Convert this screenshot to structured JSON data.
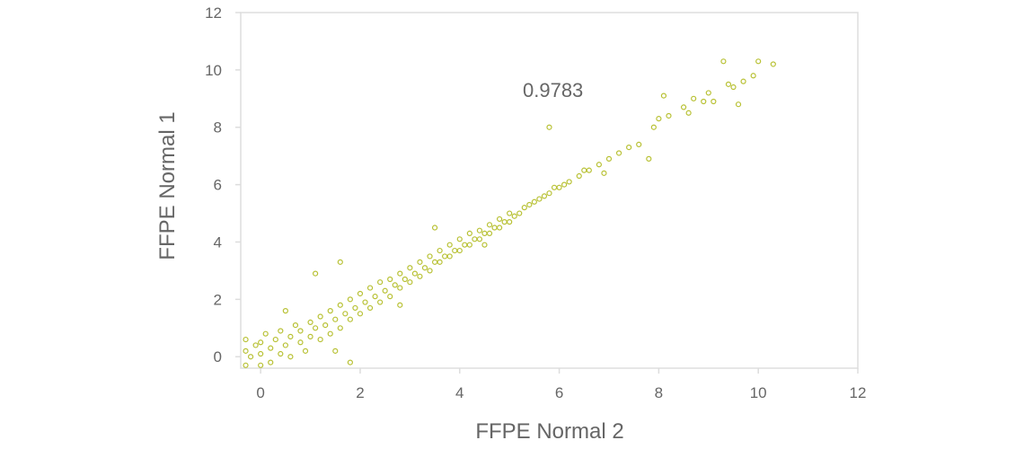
{
  "chart_data": {
    "type": "scatter",
    "title": "",
    "xlabel": "FFPE Normal 2",
    "ylabel": "FFPE Normal 1",
    "xlim": [
      -0.4,
      12
    ],
    "ylim": [
      -0.4,
      12
    ],
    "xticks": [
      0,
      2,
      4,
      6,
      8,
      10,
      12
    ],
    "yticks": [
      0,
      2,
      4,
      6,
      8,
      10,
      12
    ],
    "grid": false,
    "marker": "hollow-circle",
    "color": "#b8c134",
    "annotation": "0.9783",
    "points": [
      [
        -0.3,
        -0.3
      ],
      [
        -0.3,
        0.2
      ],
      [
        -0.3,
        0.6
      ],
      [
        -0.2,
        0.0
      ],
      [
        -0.1,
        0.4
      ],
      [
        0,
        -0.3
      ],
      [
        0,
        0.1
      ],
      [
        0,
        0.5
      ],
      [
        0.1,
        0.8
      ],
      [
        0.2,
        -0.2
      ],
      [
        0.2,
        0.3
      ],
      [
        0.3,
        0.6
      ],
      [
        0.4,
        0.1
      ],
      [
        0.4,
        0.9
      ],
      [
        0.5,
        0.4
      ],
      [
        0.6,
        0.0
      ],
      [
        0.6,
        0.7
      ],
      [
        0.7,
        1.1
      ],
      [
        0.8,
        0.5
      ],
      [
        0.8,
        0.9
      ],
      [
        0.9,
        0.2
      ],
      [
        1.0,
        0.7
      ],
      [
        1.0,
        1.2
      ],
      [
        1.1,
        1.0
      ],
      [
        1.2,
        0.6
      ],
      [
        1.2,
        1.4
      ],
      [
        1.3,
        1.1
      ],
      [
        1.4,
        0.8
      ],
      [
        1.4,
        1.6
      ],
      [
        1.5,
        1.3
      ],
      [
        1.6,
        1.0
      ],
      [
        1.6,
        1.8
      ],
      [
        1.7,
        1.5
      ],
      [
        1.8,
        1.3
      ],
      [
        1.8,
        2.0
      ],
      [
        1.9,
        1.7
      ],
      [
        2.0,
        1.5
      ],
      [
        2.0,
        2.2
      ],
      [
        2.1,
        1.9
      ],
      [
        2.2,
        1.7
      ],
      [
        2.2,
        2.4
      ],
      [
        2.3,
        2.1
      ],
      [
        2.4,
        1.9
      ],
      [
        2.4,
        2.6
      ],
      [
        2.5,
        2.3
      ],
      [
        2.6,
        2.1
      ],
      [
        2.6,
        2.7
      ],
      [
        2.7,
        2.5
      ],
      [
        2.8,
        2.4
      ],
      [
        2.8,
        2.9
      ],
      [
        2.9,
        2.7
      ],
      [
        3.0,
        2.6
      ],
      [
        3.0,
        3.1
      ],
      [
        3.1,
        2.9
      ],
      [
        3.2,
        2.8
      ],
      [
        3.2,
        3.3
      ],
      [
        3.3,
        3.1
      ],
      [
        3.4,
        3.0
      ],
      [
        3.4,
        3.5
      ],
      [
        3.5,
        3.3
      ],
      [
        3.6,
        3.3
      ],
      [
        3.6,
        3.7
      ],
      [
        3.7,
        3.5
      ],
      [
        3.8,
        3.5
      ],
      [
        3.8,
        3.9
      ],
      [
        3.9,
        3.7
      ],
      [
        4.0,
        3.7
      ],
      [
        4.0,
        4.1
      ],
      [
        4.1,
        3.9
      ],
      [
        4.2,
        3.9
      ],
      [
        4.2,
        4.3
      ],
      [
        4.3,
        4.1
      ],
      [
        4.4,
        4.1
      ],
      [
        4.4,
        4.4
      ],
      [
        4.5,
        4.3
      ],
      [
        4.6,
        4.3
      ],
      [
        4.6,
        4.6
      ],
      [
        4.7,
        4.5
      ],
      [
        4.8,
        4.5
      ],
      [
        4.8,
        4.8
      ],
      [
        4.9,
        4.7
      ],
      [
        5.0,
        4.7
      ],
      [
        5.0,
        5.0
      ],
      [
        5.1,
        4.9
      ],
      [
        5.2,
        5.0
      ],
      [
        5.3,
        5.2
      ],
      [
        5.4,
        5.3
      ],
      [
        5.5,
        5.4
      ],
      [
        5.6,
        5.5
      ],
      [
        5.7,
        5.6
      ],
      [
        5.8,
        5.7
      ],
      [
        5.9,
        5.9
      ],
      [
        6.0,
        5.9
      ],
      [
        6.1,
        6.0
      ],
      [
        6.2,
        6.1
      ],
      [
        6.4,
        6.3
      ],
      [
        6.5,
        6.5
      ],
      [
        6.6,
        6.5
      ],
      [
        6.8,
        6.7
      ],
      [
        7.0,
        6.9
      ],
      [
        7.2,
        7.1
      ],
      [
        7.4,
        7.3
      ],
      [
        7.6,
        7.4
      ],
      [
        5.8,
        8.0
      ],
      [
        7.8,
        6.9
      ],
      [
        6.9,
        6.4
      ],
      [
        7.9,
        8.0
      ],
      [
        8.0,
        8.3
      ],
      [
        8.2,
        8.4
      ],
      [
        8.5,
        8.7
      ],
      [
        8.6,
        8.5
      ],
      [
        8.9,
        8.9
      ],
      [
        9.0,
        9.2
      ],
      [
        9.1,
        8.9
      ],
      [
        9.3,
        10.3
      ],
      [
        9.4,
        9.5
      ],
      [
        9.5,
        9.4
      ],
      [
        9.6,
        8.8
      ],
      [
        9.7,
        9.6
      ],
      [
        9.9,
        9.8
      ],
      [
        10.0,
        10.3
      ],
      [
        10.3,
        10.2
      ],
      [
        8.7,
        9.0
      ],
      [
        8.1,
        9.1
      ],
      [
        0.5,
        1.6
      ],
      [
        1.1,
        2.9
      ],
      [
        1.6,
        3.3
      ],
      [
        1.8,
        -0.2
      ],
      [
        1.5,
        0.2
      ],
      [
        2.8,
        1.8
      ],
      [
        4.5,
        3.9
      ],
      [
        3.5,
        4.5
      ]
    ]
  }
}
